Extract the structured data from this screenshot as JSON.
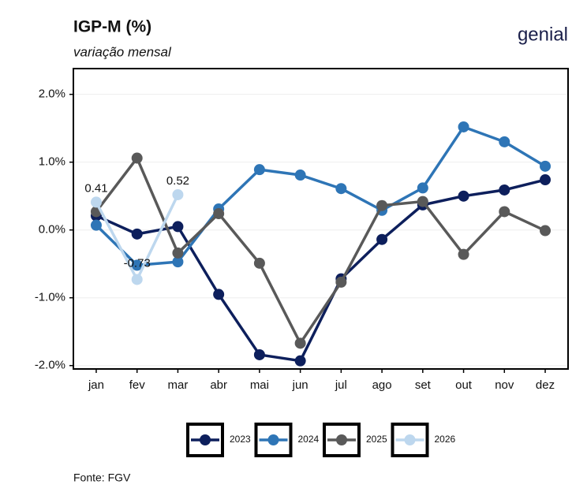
{
  "logo": "genial",
  "chart_data": {
    "type": "line",
    "title": "IGP-M (%)",
    "subtitle": "variação mensal",
    "source": "Fonte: FGV",
    "categories": [
      "jan",
      "fev",
      "mar",
      "abr",
      "mai",
      "jun",
      "jul",
      "ago",
      "set",
      "out",
      "nov",
      "dez"
    ],
    "series": [
      {
        "name": "2023",
        "color": "#0d1f5c",
        "values": [
          0.21,
          -0.06,
          0.05,
          -0.95,
          -1.84,
          -1.93,
          -0.72,
          -0.14,
          0.37,
          0.5,
          0.59,
          0.74
        ]
      },
      {
        "name": "2024",
        "color": "#2e75b6",
        "values": [
          0.07,
          -0.52,
          -0.47,
          0.31,
          0.89,
          0.81,
          0.61,
          0.29,
          0.62,
          1.52,
          1.3,
          0.94
        ]
      },
      {
        "name": "2025",
        "color": "#595959",
        "values": [
          0.27,
          1.06,
          -0.34,
          0.24,
          -0.49,
          -1.67,
          -0.77,
          0.36,
          0.42,
          -0.36,
          0.27,
          -0.01
        ]
      },
      {
        "name": "2026",
        "color": "#bdd7ee",
        "values": [
          0.41,
          -0.73,
          0.52,
          null,
          null,
          null,
          null,
          null,
          null,
          null,
          null,
          null
        ],
        "show_labels": true
      }
    ],
    "ylim": [
      -2.05,
      2.38
    ],
    "yticks": [
      {
        "value": -2,
        "label": "-2.0%"
      },
      {
        "value": -1,
        "label": "-1.0%"
      },
      {
        "value": 0,
        "label": "0.0%"
      },
      {
        "value": 1,
        "label": "1.0%"
      },
      {
        "value": 2,
        "label": "2.0%"
      }
    ],
    "grid": true,
    "legend": "bottom"
  }
}
